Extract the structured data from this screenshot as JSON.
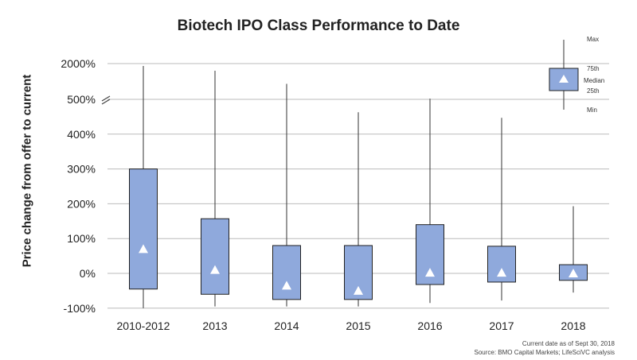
{
  "chart_data": {
    "type": "boxplot",
    "title": "Biotech IPO Class Performance to Date",
    "ylabel": "Price change from offer to current",
    "xlabel": "",
    "y_unit": "%",
    "y_ticks": [
      "-100%",
      "0%",
      "100%",
      "200%",
      "300%",
      "400%",
      "500%",
      "2000%"
    ],
    "axis_break": "between 500% and 2000%",
    "grid": true,
    "categories": [
      "2010-2012",
      "2013",
      "2014",
      "2015",
      "2016",
      "2017",
      "2018"
    ],
    "boxes": [
      {
        "category": "2010-2012",
        "min": -100,
        "q1": -45,
        "median": 70,
        "q3": 300,
        "max": 1900
      },
      {
        "category": "2013",
        "min": -95,
        "q1": -60,
        "median": 10,
        "q3": 157,
        "max": 1700
      },
      {
        "category": "2014",
        "min": -95,
        "q1": -75,
        "median": -35,
        "q3": 80,
        "max": 1150
      },
      {
        "category": "2015",
        "min": -95,
        "q1": -75,
        "median": -50,
        "q3": 80,
        "max": 463
      },
      {
        "category": "2016",
        "min": -85,
        "q1": -32,
        "median": 2,
        "q3": 140,
        "max": 530
      },
      {
        "category": "2017",
        "min": -78,
        "q1": -25,
        "median": 2,
        "q3": 78,
        "max": 447
      },
      {
        "category": "2018",
        "min": -55,
        "q1": -20,
        "median": 0,
        "q3": 25,
        "max": 193
      }
    ],
    "legend": {
      "position": "top-right",
      "labels": {
        "max": "Max",
        "q3": "75th",
        "median": "Median",
        "q1": "25th",
        "min": "Min"
      }
    },
    "colors": {
      "box_fill": "#8fa9dc",
      "box_stroke": "#222222",
      "median_marker": "#ffffff",
      "grid": "#bbbbbb"
    },
    "notes": [
      "Current date as of Sept 30, 2018",
      "Source: BMO Capital Markets; LifeSciVC analysis"
    ]
  }
}
